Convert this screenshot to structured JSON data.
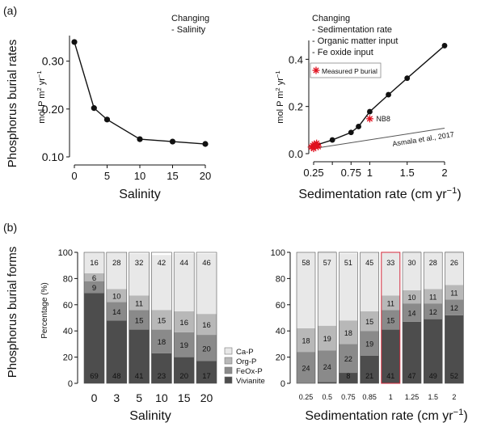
{
  "panel_a": {
    "label": "(a)",
    "row_label": "Phosphorus burial rates",
    "left_annotation": [
      "Changing",
      "- Salinity"
    ],
    "right_annotation": [
      "Changing",
      "- Sedimentation rate",
      "- Organic matter input",
      "- Fe oxide input"
    ],
    "legend_label": "Measured P burial",
    "nb8_label": "NB8",
    "ref_label": "Asmala et al., 2017"
  },
  "panel_b": {
    "label": "(b)",
    "row_label": "Phosphorus burial forms",
    "ylabel": "Percentage (%)",
    "legend": [
      "Ca-P",
      "Org-P",
      "FeOx-P",
      "Vivianite"
    ]
  },
  "colors": {
    "ca_p": "#e8e8e8",
    "org_p": "#b8b8b8",
    "feox_p": "#8a8a8a",
    "vivianite": "#4d4d4d",
    "highlight": "#d42a3c",
    "measured": "#e0101e"
  },
  "chart_data": [
    {
      "id": "salinity-line",
      "type": "line",
      "x": [
        0,
        3,
        5,
        10,
        15,
        20
      ],
      "y": [
        0.34,
        0.202,
        0.178,
        0.137,
        0.132,
        0.127
      ],
      "xticks": [
        0,
        5,
        10,
        15,
        20
      ],
      "xticklabels": [
        "0",
        "5",
        "10",
        "15",
        "20"
      ],
      "yticks": [
        0.1,
        0.2,
        0.3
      ],
      "yticklabels": [
        "0.10",
        "0.20",
        "0.30"
      ],
      "xlim": [
        0,
        20
      ],
      "ylim": [
        0.1,
        0.35
      ],
      "xlabel": "Salinity",
      "ylabel": "mol P m",
      "ylabel_sup": "2",
      "ylabel_end": " yr",
      "ylabel_sup2": "−1"
    },
    {
      "id": "sedrate-line",
      "type": "line",
      "x": [
        0.25,
        0.5,
        0.75,
        0.85,
        1,
        1.25,
        1.5,
        2
      ],
      "y": [
        0.033,
        0.058,
        0.09,
        0.115,
        0.178,
        0.25,
        0.32,
        0.458
      ],
      "measured": {
        "name": "Measured P burial",
        "points": [
          {
            "x": 0.22,
            "y": 0.028
          },
          {
            "x": 0.24,
            "y": 0.034
          },
          {
            "x": 0.25,
            "y": 0.022
          },
          {
            "x": 0.27,
            "y": 0.032
          },
          {
            "x": 0.29,
            "y": 0.044
          },
          {
            "x": 0.31,
            "y": 0.03
          },
          {
            "x": 0.26,
            "y": 0.04
          },
          {
            "x": 0.3,
            "y": 0.036
          },
          {
            "x": 1,
            "y": 0.148
          }
        ]
      },
      "reference_line": {
        "x": [
          0.25,
          2
        ],
        "y": [
          0.022,
          0.108
        ]
      },
      "xticks": [
        0.25,
        0.75,
        1,
        1.5,
        2
      ],
      "xticklabels": [
        "0.25",
        "0.75",
        "1",
        "1.5",
        "2"
      ],
      "extra_xticks": [
        0.5
      ],
      "yticks": [
        0,
        0.2,
        0.4
      ],
      "yticklabels": [
        "0.0",
        "0.2",
        "0.4"
      ],
      "xlim": [
        0.25,
        2
      ],
      "ylim": [
        0,
        0.48
      ],
      "xlabel": "Sedimentation rate (cm yr",
      "xlabel_sup": "−1",
      "xlabel_end": ")",
      "ylabel": "mol P m",
      "ylabel_sup": "2",
      "ylabel_end": " yr",
      "ylabel_sup2": "−1"
    },
    {
      "id": "salinity-bars",
      "type": "bar",
      "stacked": true,
      "categories": [
        "0",
        "3",
        "5",
        "10",
        "15",
        "20"
      ],
      "series": [
        {
          "name": "Vivianite",
          "values": [
            69,
            48,
            41,
            23,
            20,
            17
          ]
        },
        {
          "name": "FeOx-P",
          "values": [
            9,
            14,
            15,
            18,
            19,
            20
          ]
        },
        {
          "name": "Org-P",
          "values": [
            6,
            10,
            11,
            15,
            16,
            16
          ]
        },
        {
          "name": "Ca-P",
          "values": [
            16,
            28,
            32,
            42,
            44,
            46
          ]
        }
      ],
      "ylim": [
        0,
        100
      ],
      "yticks": [
        0,
        20,
        40,
        60,
        80,
        100
      ],
      "xlabel": "Salinity"
    },
    {
      "id": "sedrate-bars",
      "type": "bar",
      "stacked": true,
      "categories": [
        "0.25",
        "0.5",
        "0.75",
        "0.85",
        "1",
        "1.25",
        "1.5",
        "2"
      ],
      "highlight_index": 4,
      "series": [
        {
          "name": "Vivianite",
          "values": [
            0,
            1,
            8,
            21,
            41,
            47,
            49,
            52
          ]
        },
        {
          "name": "FeOx-P",
          "values": [
            24,
            24,
            22,
            19,
            15,
            14,
            12,
            12
          ]
        },
        {
          "name": "Org-P",
          "values": [
            18,
            19,
            18,
            15,
            11,
            10,
            11,
            11
          ]
        },
        {
          "name": "Ca-P",
          "values": [
            58,
            57,
            51,
            45,
            33,
            30,
            28,
            26
          ]
        }
      ],
      "ylim": [
        0,
        100
      ],
      "yticks": [
        0,
        20,
        40,
        60,
        80,
        100
      ],
      "xlabel": "Sedimentation rate (cm yr",
      "xlabel_sup": "−1",
      "xlabel_end": ")"
    }
  ]
}
